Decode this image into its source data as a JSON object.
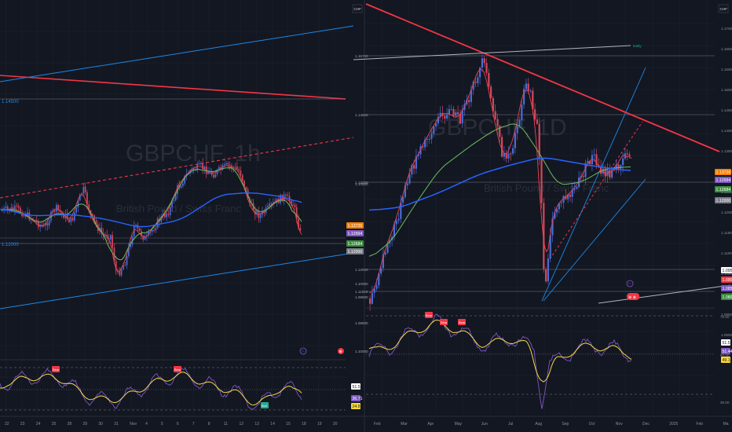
{
  "colors": {
    "background": "#131722",
    "grid": "#1e222d",
    "candle_up": "#4a6bd6",
    "candle_down": "#d3475a",
    "ma_fast": "#e84552",
    "ma_mid": "#6bbf59",
    "ma_slow": "#2962ff",
    "channel": "#1e88e5",
    "trendline": "#f23645",
    "rsi_line": "#7e57c2",
    "rsi_ma": "#f5d949",
    "badge_orange": "#f57c00",
    "badge_green": "#388e3c",
    "badge_purple": "#7e57c2",
    "badge_yellow": "#fdd835",
    "label_bear": "#f23645",
    "label_bull": "#22ab94"
  },
  "left_chart": {
    "watermark": "GBPCHF, 1h",
    "watermark_sub": "British Pound / Swiss Franc",
    "levels": [
      "1.14500",
      "1.12000"
    ],
    "badges": [
      {
        "text": "1.13726",
        "color": "orange"
      },
      {
        "text": "1.12994",
        "color": "purple"
      },
      {
        "text": "1.12684",
        "color": "green"
      },
      {
        "text": "1.12000",
        "color": "gray"
      }
    ],
    "rsi_badges": [
      "51.52",
      "36.71",
      "24.81"
    ],
    "rsi_labels": [
      "Bear",
      "Bear",
      "Bull"
    ],
    "xaxis": [
      "22",
      "23",
      "24",
      "25",
      "28",
      "29",
      "30",
      "31",
      "Nov",
      "4",
      "5",
      "6",
      "7",
      "8",
      "11",
      "12",
      "13",
      "14",
      "15",
      "18",
      "19",
      "20"
    ],
    "event_icons": [
      "⚐",
      "⊕"
    ]
  },
  "right_chart": {
    "corner_icon": "CHF",
    "left_corner_icon": "CHF",
    "watermark": "GBPCHF, 1D",
    "watermark_sub": "British Pound / Swiss Franc",
    "daily_label": "Daily",
    "yaxis": [
      "1.17000",
      "1.16500",
      "1.15500",
      "1.15000",
      "1.14500",
      "1.14000",
      "1.13500",
      "1.13000",
      "1.12500",
      "1.12000",
      "1.11500",
      "1.11000",
      "1.10500",
      "1.10000",
      "1.09500",
      "1.08500"
    ],
    "left_levels": [
      "1.15700",
      "1.14550",
      "1.13000",
      "1.12000",
      "1.11500",
      "1.10500",
      "1.10000",
      "1.08500"
    ],
    "badges": [
      {
        "text": "1.13726",
        "color": "orange"
      },
      {
        "text": "1.12994",
        "color": "purple"
      },
      {
        "text": "1.12684",
        "color": "green"
      },
      {
        "text": "1.12000",
        "color": "gray"
      }
    ],
    "rsi_levels": [
      "70.00",
      "50.00",
      "30.00"
    ],
    "rsi_left_levels": [
      "1.09500",
      "1.10000"
    ],
    "rsi_badges": [
      "51.52",
      "51.44",
      "49.16"
    ],
    "rsi_labels": [
      "Bear",
      "Bear",
      "Bear"
    ],
    "xaxis": [
      "Feb",
      "Mar",
      "Apr",
      "May",
      "Jun",
      "Jul",
      "Aug",
      "Sep",
      "Oct",
      "Nov",
      "Dec",
      "2025",
      "Feb",
      "Ma"
    ],
    "event_icons": [
      "⚐",
      "⊕ ⊗"
    ]
  }
}
